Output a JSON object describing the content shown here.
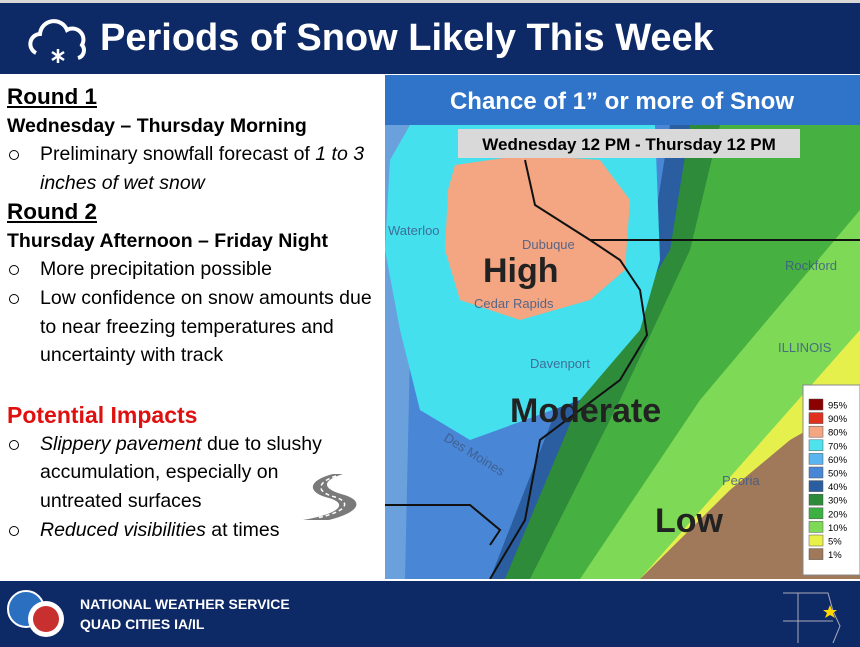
{
  "header": {
    "title": "Periods of Snow Likely This Week"
  },
  "rounds": [
    {
      "heading": "Round 1",
      "period": "Wednesday – Thursday Morning",
      "bullets": [
        [
          {
            "text": "Preliminary snowfall forecast of",
            "italic": false
          },
          {
            "text": "1 to 3 inches of wet snow",
            "italic": true
          }
        ]
      ]
    },
    {
      "heading": "Round 2",
      "period": "Thursday Afternoon – Friday Night",
      "bullets": [
        [
          {
            "text": "More precipitation possible",
            "italic": false
          }
        ],
        [
          {
            "text": "Low confidence on snow amounts due to near freezing temperatures and uncertainty with track",
            "italic": false
          }
        ]
      ]
    }
  ],
  "impacts": {
    "heading": "Potential Impacts",
    "bullets": [
      [
        {
          "text": "Slippery pavement",
          "italic": true
        },
        {
          "text": "due to slushy accumulation, especially on untreated surfaces",
          "italic": false
        }
      ],
      [
        {
          "text": "Reduced visibilities",
          "italic": true
        },
        {
          "text": "at times",
          "italic": false
        }
      ]
    ]
  },
  "map": {
    "title": "Chance of 1” or more of Snow",
    "period": "Wednesday 12 PM - Thursday 12 PM",
    "cities": [
      "Waterloo",
      "Dubuque",
      "Cedar Rapids",
      "Davenport",
      "Rockford",
      "ILLINOIS",
      "Des Moines",
      "Peoria"
    ],
    "regions": [
      "High",
      "Moderate",
      "Low"
    ],
    "legend": [
      {
        "label": "95%",
        "color": "#8b0000"
      },
      {
        "label": "90%",
        "color": "#e0301e"
      },
      {
        "label": "80%",
        "color": "#f4a582"
      },
      {
        "label": "70%",
        "color": "#4fe3ee"
      },
      {
        "label": "60%",
        "color": "#5ab4f0"
      },
      {
        "label": "50%",
        "color": "#4a86d6"
      },
      {
        "label": "40%",
        "color": "#2a5ea0"
      },
      {
        "label": "30%",
        "color": "#2e8b3a"
      },
      {
        "label": "20%",
        "color": "#3cb043"
      },
      {
        "label": "10%",
        "color": "#7ed957"
      },
      {
        "label": "5%",
        "color": "#e8f04a"
      },
      {
        "label": "1%",
        "color": "#a0785a"
      }
    ]
  },
  "footer": {
    "line1": "NATIONAL WEATHER SERVICE",
    "line2": "QUAD CITIES IA/IL"
  }
}
